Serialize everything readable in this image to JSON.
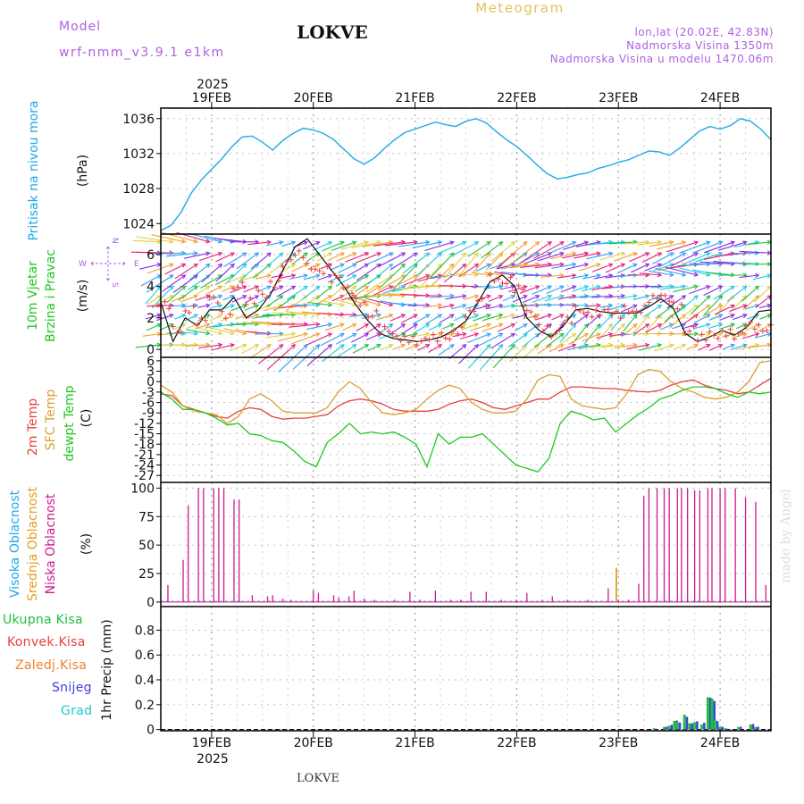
{
  "header": {
    "meteogram": "Meteogram",
    "station_title": "LOKVE",
    "model_label": "Model",
    "model_name": "wrf-nmm_v3.9.1 e1km",
    "lonlat": "lon,lat (20.02E, 42.83N)",
    "elevation": "Nadmorska Visina 1350m",
    "model_elevation": "Nadmorska Visina u modelu 1470.06m",
    "year_top": "2025",
    "year_bottom": "2025",
    "footer_station": "LOKVE",
    "credit": "made by Angel"
  },
  "colors": {
    "purple": "#b060e0",
    "gold": "#e8c060",
    "pressure": "#1fa8e8",
    "t2m": "#e84040",
    "sfc": "#d8a030",
    "dewpt": "#20c820",
    "high_cloud": "#20a8e8",
    "mid_cloud": "#e0a020",
    "low_cloud": "#d01890",
    "total_rain": "#20c040",
    "conv_rain": "#e84040",
    "freezing_rain": "#f08030",
    "snow": "#4040e0",
    "hail": "#20c8c8"
  },
  "chart_data": [
    {
      "type": "line",
      "name": "pressure",
      "ylabel_rotated": "Pritisak na nivou mora",
      "unit": "(hPa)",
      "x_day_labels": [
        "19FEB",
        "20FEB",
        "21FEB",
        "22FEB",
        "23FEB",
        "24FEB"
      ],
      "yticks": [
        1024,
        1028,
        1032,
        1036
      ],
      "ylim": [
        1022.8,
        1037.2
      ],
      "x_day_range": [
        18.5,
        24.5
      ],
      "series": [
        {
          "x": [
            18.5,
            18.6,
            18.7,
            18.8,
            18.9,
            19.0,
            19.1,
            19.2,
            19.3,
            19.4,
            19.5,
            19.6,
            19.7,
            19.8,
            19.9,
            20.0,
            20.1,
            20.2,
            20.3,
            20.4,
            20.5,
            20.6,
            20.7,
            20.8,
            20.9,
            21.0,
            21.1,
            21.2,
            21.3,
            21.4,
            21.5,
            21.6,
            21.7,
            21.8,
            21.9,
            22.0,
            22.1,
            22.2,
            22.3,
            22.4,
            22.5,
            22.6,
            22.7,
            22.8,
            22.9,
            23.0,
            23.1,
            23.2,
            23.3,
            23.4,
            23.5,
            23.6,
            23.7,
            23.8,
            23.9,
            24.0,
            24.1,
            24.2,
            24.3,
            24.4,
            24.5
          ],
          "values": [
            1023.2,
            1023.8,
            1025.3,
            1027.5,
            1029.0,
            1030.2,
            1031.4,
            1032.8,
            1033.9,
            1034.0,
            1033.3,
            1032.4,
            1033.5,
            1034.3,
            1034.9,
            1034.7,
            1034.3,
            1033.6,
            1032.5,
            1031.4,
            1030.8,
            1031.5,
            1032.6,
            1033.6,
            1034.4,
            1034.8,
            1035.2,
            1035.6,
            1035.3,
            1035.1,
            1035.7,
            1036.0,
            1035.5,
            1034.5,
            1033.6,
            1032.8,
            1031.8,
            1030.7,
            1029.7,
            1029.1,
            1029.3,
            1029.6,
            1029.8,
            1030.3,
            1030.6,
            1031.0,
            1031.3,
            1031.8,
            1032.3,
            1032.2,
            1031.8,
            1032.6,
            1033.6,
            1034.6,
            1035.1,
            1034.8,
            1035.2,
            1036.0,
            1035.7,
            1034.8,
            1033.6
          ]
        }
      ]
    },
    {
      "type": "scatter",
      "name": "wind",
      "ylabel_rotated_1": "10m Vjetar",
      "ylabel_rotated_2": "Brzina i Pravac",
      "unit": "(m/s)",
      "compass": {
        "n": "N",
        "s": "S",
        "e": "E",
        "w": "W"
      },
      "yticks": [
        0,
        2,
        4,
        6
      ],
      "ylim": [
        -0.5,
        7.3
      ],
      "speed": [
        3.0,
        0.5,
        2.0,
        1.5,
        2.5,
        2.5,
        3.3,
        2.0,
        2.5,
        3.5,
        5.0,
        6.5,
        7.0,
        6.0,
        5.0,
        4.0,
        2.8,
        1.8,
        1.0,
        0.7,
        0.6,
        0.5,
        0.6,
        0.8,
        1.2,
        1.8,
        3.0,
        4.3,
        4.7,
        4.0,
        2.0,
        1.2,
        0.8,
        1.5,
        2.5,
        2.6,
        2.4,
        2.3,
        2.3,
        2.3,
        2.7,
        3.2,
        2.6,
        1.0,
        0.5,
        0.8,
        1.2,
        0.9,
        1.4,
        2.4,
        2.5
      ],
      "gust": [
        2.8,
        1.2,
        2.5,
        1.8,
        3.2,
        2.2,
        4.0,
        3.0,
        3.5,
        4.2,
        5.5,
        6.0,
        5.2,
        5.0,
        4.5,
        3.8,
        3.0,
        2.2,
        1.2,
        0.8,
        0.7,
        0.5,
        0.7,
        0.8,
        1.2,
        2.3,
        3.0,
        4.5,
        4.3,
        3.8,
        2.3,
        1.4,
        1.0,
        1.8,
        2.5,
        2.3,
        2.4,
        2.2,
        2.5,
        2.5,
        3.2,
        3.3,
        2.8,
        1.2,
        0.7,
        0.9,
        1.1,
        0.9,
        1.5,
        1.3,
        1.6
      ]
    },
    {
      "type": "line",
      "name": "temperature",
      "ylabel_rotated_1": "2m Temp",
      "ylabel_rotated_2": "SFC Temp",
      "ylabel_rotated_3": "dewpt Temp",
      "unit": "(C)",
      "yticks": [
        6,
        3,
        0,
        -3,
        -6,
        -9,
        -12,
        -15,
        -18,
        -21,
        -24,
        -27
      ],
      "ylim": [
        -29,
        7
      ],
      "series": [
        {
          "name": "2m Temp",
          "values": [
            -3.5,
            -4.0,
            -7.0,
            -8.0,
            -9.0,
            -10.0,
            -10.5,
            -8.5,
            -7.5,
            -8.0,
            -10.0,
            -10.8,
            -10.5,
            -10.5,
            -10.0,
            -9.5,
            -7.0,
            -5.5,
            -5.0,
            -5.5,
            -6.5,
            -8.0,
            -8.5,
            -8.5,
            -8.5,
            -8.0,
            -6.5,
            -5.5,
            -5.0,
            -6.0,
            -7.5,
            -8.0,
            -7.0,
            -6.0,
            -5.0,
            -5.0,
            -3.0,
            -1.5,
            -1.5,
            -1.8,
            -2.0,
            -2.0,
            -2.5,
            -2.8,
            -3.0,
            -2.5,
            -1.0,
            0.0,
            0.5,
            -1.0,
            -2.0,
            -2.5,
            -3.5,
            -3.0,
            -1.0,
            1.0
          ]
        },
        {
          "name": "SFC Temp",
          "values": [
            -1.0,
            -3.0,
            -7.0,
            -8.5,
            -9.0,
            -9.5,
            -12.0,
            -10.0,
            -5.0,
            -3.5,
            -5.5,
            -8.5,
            -9.0,
            -9.0,
            -9.0,
            -7.5,
            -3.0,
            0.0,
            -2.0,
            -6.0,
            -9.0,
            -9.5,
            -9.0,
            -8.0,
            -5.0,
            -2.5,
            -1.0,
            -2.0,
            -6.0,
            -8.0,
            -9.0,
            -9.0,
            -8.5,
            -5.0,
            0.5,
            2.0,
            1.5,
            -5.0,
            -7.0,
            -7.5,
            -8.0,
            -7.5,
            -3.5,
            2.0,
            3.5,
            3.0,
            0.0,
            -2.0,
            -3.0,
            -4.5,
            -5.0,
            -4.5,
            -3.0,
            0.0,
            5.5,
            6.0
          ]
        },
        {
          "name": "dewpt Temp",
          "values": [
            -3.0,
            -5.0,
            -8.0,
            -8.0,
            -9.0,
            -10.5,
            -12.5,
            -12.0,
            -15.0,
            -15.5,
            -17.0,
            -17.5,
            -20.0,
            -23.0,
            -24.5,
            -17.5,
            -15.0,
            -12.0,
            -15.0,
            -14.5,
            -15.0,
            -14.5,
            -16.0,
            -18.0,
            -24.5,
            -15.0,
            -18.0,
            -16.0,
            -16.0,
            -15.0,
            -18.0,
            -21.0,
            -24.0,
            -25.0,
            -26.0,
            -22.0,
            -12.0,
            -8.5,
            -9.5,
            -11.0,
            -10.5,
            -14.5,
            -12.0,
            -9.5,
            -7.5,
            -5.0,
            -4.0,
            -2.5,
            -1.5,
            -1.5,
            -2.0,
            -3.5,
            -4.5,
            -3.0,
            -3.5,
            -3.0
          ]
        }
      ]
    },
    {
      "type": "bar",
      "name": "cloud",
      "ylabel_rotated_1": "Visoka Oblacnost",
      "ylabel_rotated_2": "Srednja Oblacnost",
      "ylabel_rotated_3": "Niska Oblacnost",
      "unit": "(%)",
      "yticks": [
        0,
        25,
        50,
        75,
        100
      ],
      "ylim": [
        -4,
        105
      ],
      "low_bars": [
        [
          18.57,
          15
        ],
        [
          18.72,
          37
        ],
        [
          18.77,
          85
        ],
        [
          18.87,
          100
        ],
        [
          18.92,
          100
        ],
        [
          19.02,
          100
        ],
        [
          19.07,
          100
        ],
        [
          19.12,
          100
        ],
        [
          19.22,
          90
        ],
        [
          19.27,
          90
        ],
        [
          19.4,
          6
        ],
        [
          19.55,
          5
        ],
        [
          19.6,
          6
        ],
        [
          19.7,
          3
        ],
        [
          19.78,
          2
        ],
        [
          20.0,
          10
        ],
        [
          20.05,
          8
        ],
        [
          20.2,
          6
        ],
        [
          20.25,
          4
        ],
        [
          20.35,
          5
        ],
        [
          20.4,
          10
        ],
        [
          20.5,
          3
        ],
        [
          20.6,
          2
        ],
        [
          20.8,
          2
        ],
        [
          20.95,
          9
        ],
        [
          21.05,
          2
        ],
        [
          21.2,
          10
        ],
        [
          21.35,
          2
        ],
        [
          21.45,
          2
        ],
        [
          21.55,
          9
        ],
        [
          21.7,
          9
        ],
        [
          21.85,
          2
        ],
        [
          22.0,
          2
        ],
        [
          22.1,
          8
        ],
        [
          22.25,
          2
        ],
        [
          22.35,
          5
        ],
        [
          22.5,
          2
        ],
        [
          22.7,
          2
        ],
        [
          22.9,
          12
        ],
        [
          23.0,
          2
        ],
        [
          23.1,
          2
        ],
        [
          23.2,
          16
        ],
        [
          23.25,
          93
        ],
        [
          23.3,
          100
        ],
        [
          23.38,
          100
        ],
        [
          23.45,
          100
        ],
        [
          23.5,
          100
        ],
        [
          23.58,
          100
        ],
        [
          23.62,
          100
        ],
        [
          23.68,
          100
        ],
        [
          23.75,
          98
        ],
        [
          23.8,
          98
        ],
        [
          23.88,
          100
        ],
        [
          23.92,
          100
        ],
        [
          24.0,
          100
        ],
        [
          24.05,
          100
        ],
        [
          24.15,
          100
        ],
        [
          24.25,
          92
        ],
        [
          24.35,
          88
        ],
        [
          24.45,
          15
        ]
      ],
      "mid_bars": [
        [
          22.98,
          30
        ]
      ]
    },
    {
      "type": "bar",
      "name": "precipitation",
      "legend": [
        "Ukupna Kisa",
        "Konvek.Kisa",
        "Zaledj.Kisa",
        "Snijeg",
        "Grad"
      ],
      "ylabel_rotated": "1hr Precip (mm)",
      "yticks": [
        0,
        0.2,
        0.4,
        0.6,
        0.8
      ],
      "ylim": [
        -0.01,
        0.99
      ],
      "bars": [
        [
          23.35,
          0.0,
          0.01
        ],
        [
          23.45,
          0.01,
          0.02
        ],
        [
          23.5,
          0.02,
          0.03
        ],
        [
          23.55,
          0.03,
          0.07
        ],
        [
          23.58,
          0.02,
          0.06
        ],
        [
          23.65,
          0.03,
          0.12
        ],
        [
          23.7,
          0.02,
          0.05
        ],
        [
          23.75,
          0.03,
          0.06
        ],
        [
          23.82,
          0.03,
          0.04
        ],
        [
          23.88,
          0.1,
          0.26
        ],
        [
          23.92,
          0.08,
          0.25
        ],
        [
          23.95,
          0.02,
          0.08
        ],
        [
          24.0,
          0.01,
          0.02
        ],
        [
          24.05,
          0.0,
          0.01
        ],
        [
          24.18,
          0.01,
          0.02
        ],
        [
          24.3,
          0.02,
          0.04
        ],
        [
          24.35,
          0.01,
          0.02
        ]
      ]
    }
  ]
}
